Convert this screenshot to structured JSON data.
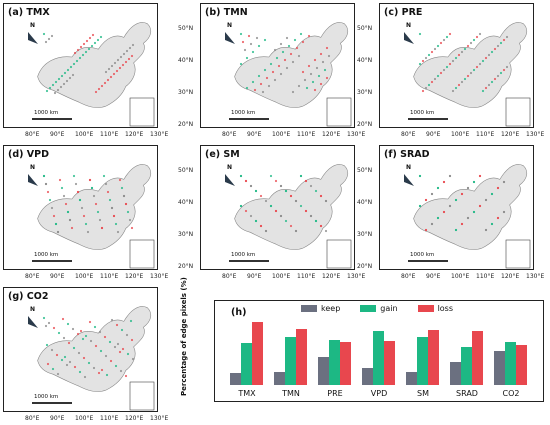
{
  "panels": [
    {
      "label": "(a)  TMX"
    },
    {
      "label": "(b)  TMN"
    },
    {
      "label": "(c)  PRE"
    },
    {
      "label": "(d)  VPD"
    },
    {
      "label": "(e)  SM"
    },
    {
      "label": "(f)  SRAD"
    },
    {
      "label": "(g)  CO2"
    }
  ],
  "map_text": {
    "north": "N",
    "scale": "1000 km",
    "lat": [
      "50°N",
      "40°N",
      "30°N",
      "20°N"
    ],
    "lon": [
      "80°E",
      "90°E",
      "100°E",
      "110°E",
      "120°E",
      "130°E"
    ]
  },
  "colors": {
    "keep": "#6b7080",
    "gain": "#1db884",
    "loss": "#e8474e"
  },
  "chart_data": {
    "type": "bar",
    "panel_label": "(h)",
    "ylabel": "Percentage of edge pixels (%)",
    "categories": [
      "TMX",
      "TMN",
      "PRE",
      "VPD",
      "SM",
      "SRAD",
      "CO2"
    ],
    "series": [
      {
        "name": "keep",
        "values": [
          10,
          11,
          24,
          15,
          11,
          20,
          29
        ]
      },
      {
        "name": "gain",
        "values": [
          36,
          41,
          39,
          46,
          41,
          33,
          37
        ]
      },
      {
        "name": "loss",
        "values": [
          54,
          48,
          37,
          38,
          47,
          46,
          34
        ]
      }
    ],
    "ylim": [
      0,
      60
    ]
  }
}
